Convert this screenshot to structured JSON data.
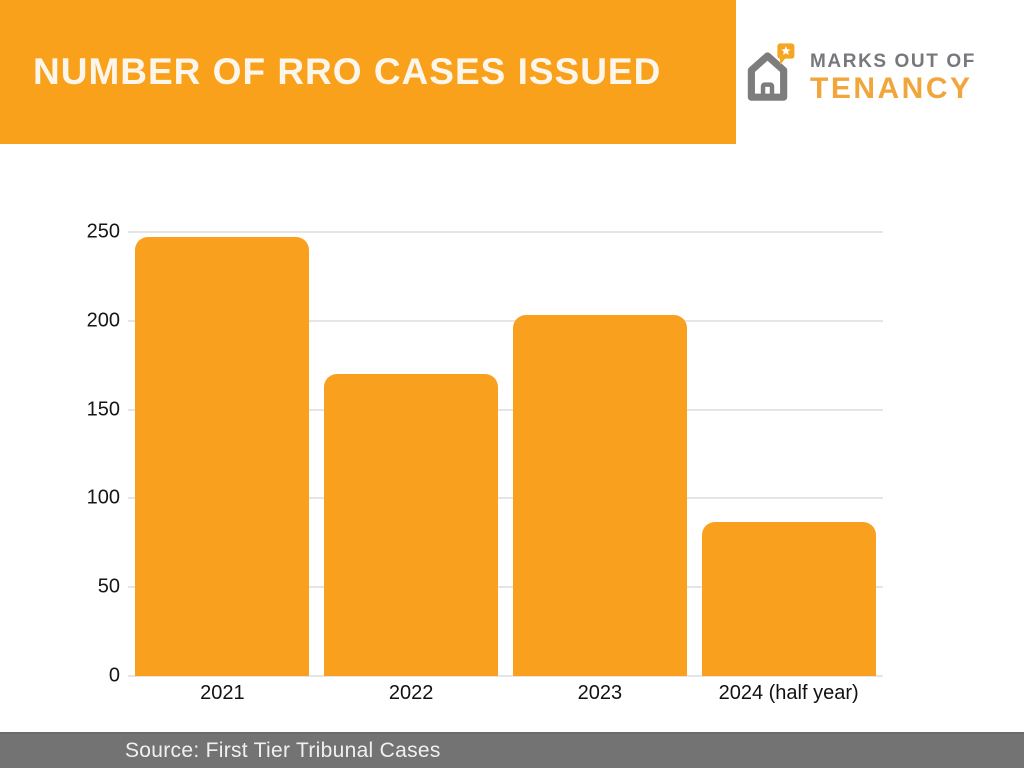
{
  "header": {
    "title": "NUMBER OF RRO CASES ISSUED",
    "banner_color": "#F9A11B",
    "title_color": "#FBF6EC"
  },
  "logo": {
    "icon": "house-with-star-pin-icon",
    "line1": "MARKS OUT OF",
    "line2": "TENANCY",
    "line1_color": "#77787B",
    "line2_color": "#F1A63C",
    "house_color": "#7D7D7D",
    "pin_color": "#F5A623"
  },
  "chart_data": {
    "type": "bar",
    "title": "NUMBER OF RRO CASES ISSUED",
    "categories": [
      "2021",
      "2022",
      "2023",
      "2024 (half year)"
    ],
    "values": [
      247,
      170,
      203,
      87
    ],
    "xlabel": "",
    "ylabel": "",
    "ylim": [
      0,
      250
    ],
    "yticks": [
      0,
      50,
      100,
      150,
      200,
      250
    ],
    "bar_color": "#F9A01F",
    "grid": true,
    "gridline_color": "#E5E5E5",
    "legend": false
  },
  "footer": {
    "source_text": "Source: First Tier Tribunal Cases",
    "bg_color": "#737373"
  }
}
